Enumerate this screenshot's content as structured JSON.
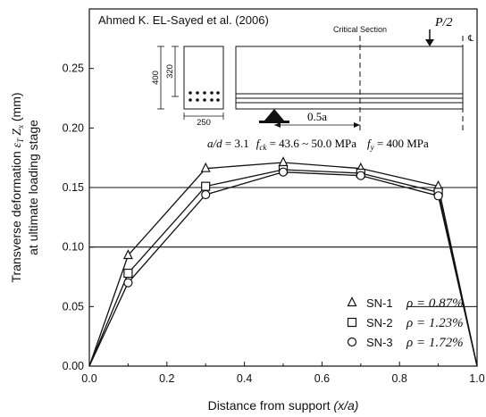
{
  "chart_data": {
    "type": "line",
    "annotation_title": "Ahmed K. EL-Sayed et al. (2006)",
    "xlabel_prefix": "Distance from support ",
    "xlabel_var": "(x/a)",
    "ylabel_line1_prefix": "Transverse deformation ",
    "ylabel_line1_sym": "ε",
    "ylabel_line1_sub1": "T",
    "ylabel_line1_sym2": "Z",
    "ylabel_line1_sub2": "x",
    "ylabel_line1_unit": " (mm)",
    "ylabel_line2": "at ultimate loading stage",
    "xlim": [
      0.0,
      1.0
    ],
    "ylim": [
      0.0,
      0.3
    ],
    "xticks": [
      "0.0",
      "0.2",
      "0.4",
      "0.6",
      "0.8",
      "1.0"
    ],
    "yticks": [
      "0.00",
      "0.05",
      "0.10",
      "0.15",
      "0.20",
      "0.25"
    ],
    "hgrid": [
      0.1,
      0.15
    ],
    "series": [
      {
        "name": "SN-1",
        "marker": "triangle",
        "rho": "ρ = 0.87%",
        "x": [
          0.0,
          0.1,
          0.3,
          0.5,
          0.7,
          0.9,
          1.0
        ],
        "y": [
          0.0,
          0.093,
          0.166,
          0.171,
          0.166,
          0.151,
          0.0
        ]
      },
      {
        "name": "SN-2",
        "marker": "square",
        "rho": "ρ = 1.23%",
        "x": [
          0.0,
          0.1,
          0.3,
          0.5,
          0.7,
          0.9,
          1.0
        ],
        "y": [
          0.0,
          0.078,
          0.151,
          0.165,
          0.162,
          0.146,
          0.0
        ]
      },
      {
        "name": "SN-3",
        "marker": "circle",
        "rho": "ρ = 1.72%",
        "x": [
          0.0,
          0.1,
          0.3,
          0.5,
          0.7,
          0.9,
          1.0
        ],
        "y": [
          0.0,
          0.07,
          0.144,
          0.163,
          0.16,
          0.143,
          0.0
        ]
      }
    ],
    "inset": {
      "dim_400": "400",
      "dim_320": "320",
      "dim_250": "250",
      "critical_section": "Critical Section",
      "load": "P/2",
      "centerline": "℄",
      "half_a": "0.5a",
      "params_ad": "a/d",
      "params_ad_val": " = 3.1",
      "params_fck": "f",
      "params_fck_sub": "ck",
      "params_fck_val": " = 43.6 ~ 50.0 MPa",
      "params_fy": "f",
      "params_fy_sub": "y",
      "params_fy_val": " = 400 MPa"
    },
    "legend_position": "bottom-right"
  }
}
